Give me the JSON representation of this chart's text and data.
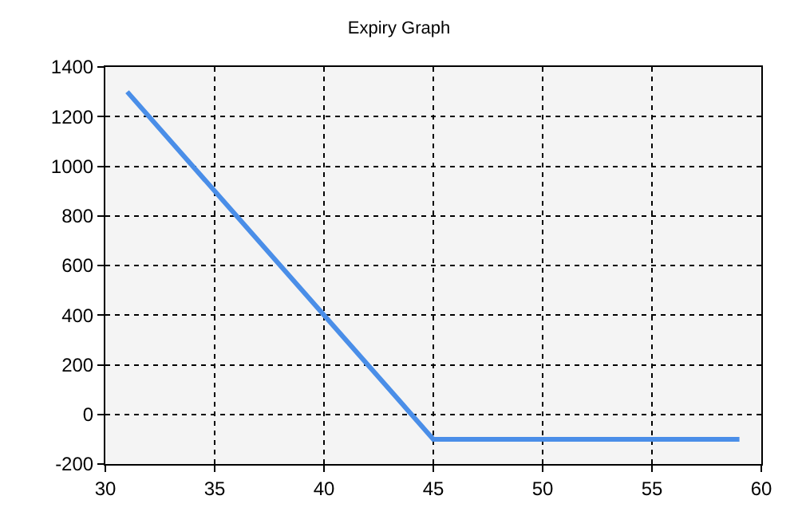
{
  "chart_data": {
    "type": "line",
    "title": "Expiry Graph",
    "x": [
      31,
      45,
      59
    ],
    "series": [
      {
        "color": "#4a8ee8",
        "values": [
          1300,
          -100,
          -100
        ]
      }
    ],
    "xlim": [
      30,
      60
    ],
    "xticks": [
      30,
      35,
      40,
      45,
      50,
      55,
      60
    ],
    "ylim": [
      -200,
      1400
    ],
    "yticks": [
      -200,
      0,
      200,
      400,
      600,
      800,
      1000,
      1200,
      1400
    ],
    "grid": true,
    "marker": "none",
    "line_style": "solid"
  }
}
